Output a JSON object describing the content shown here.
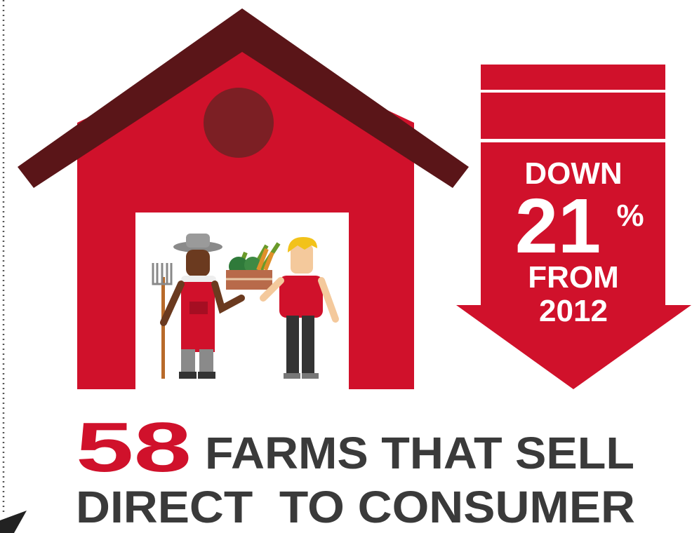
{
  "stat": {
    "number": 58,
    "line1": "FARMS THAT SELL",
    "line2": "DIRECT  TO CONSUMER"
  },
  "change": {
    "direction": "DOWN",
    "amount": 21,
    "unit": "%",
    "from_label": "FROM",
    "year": 2012
  }
}
